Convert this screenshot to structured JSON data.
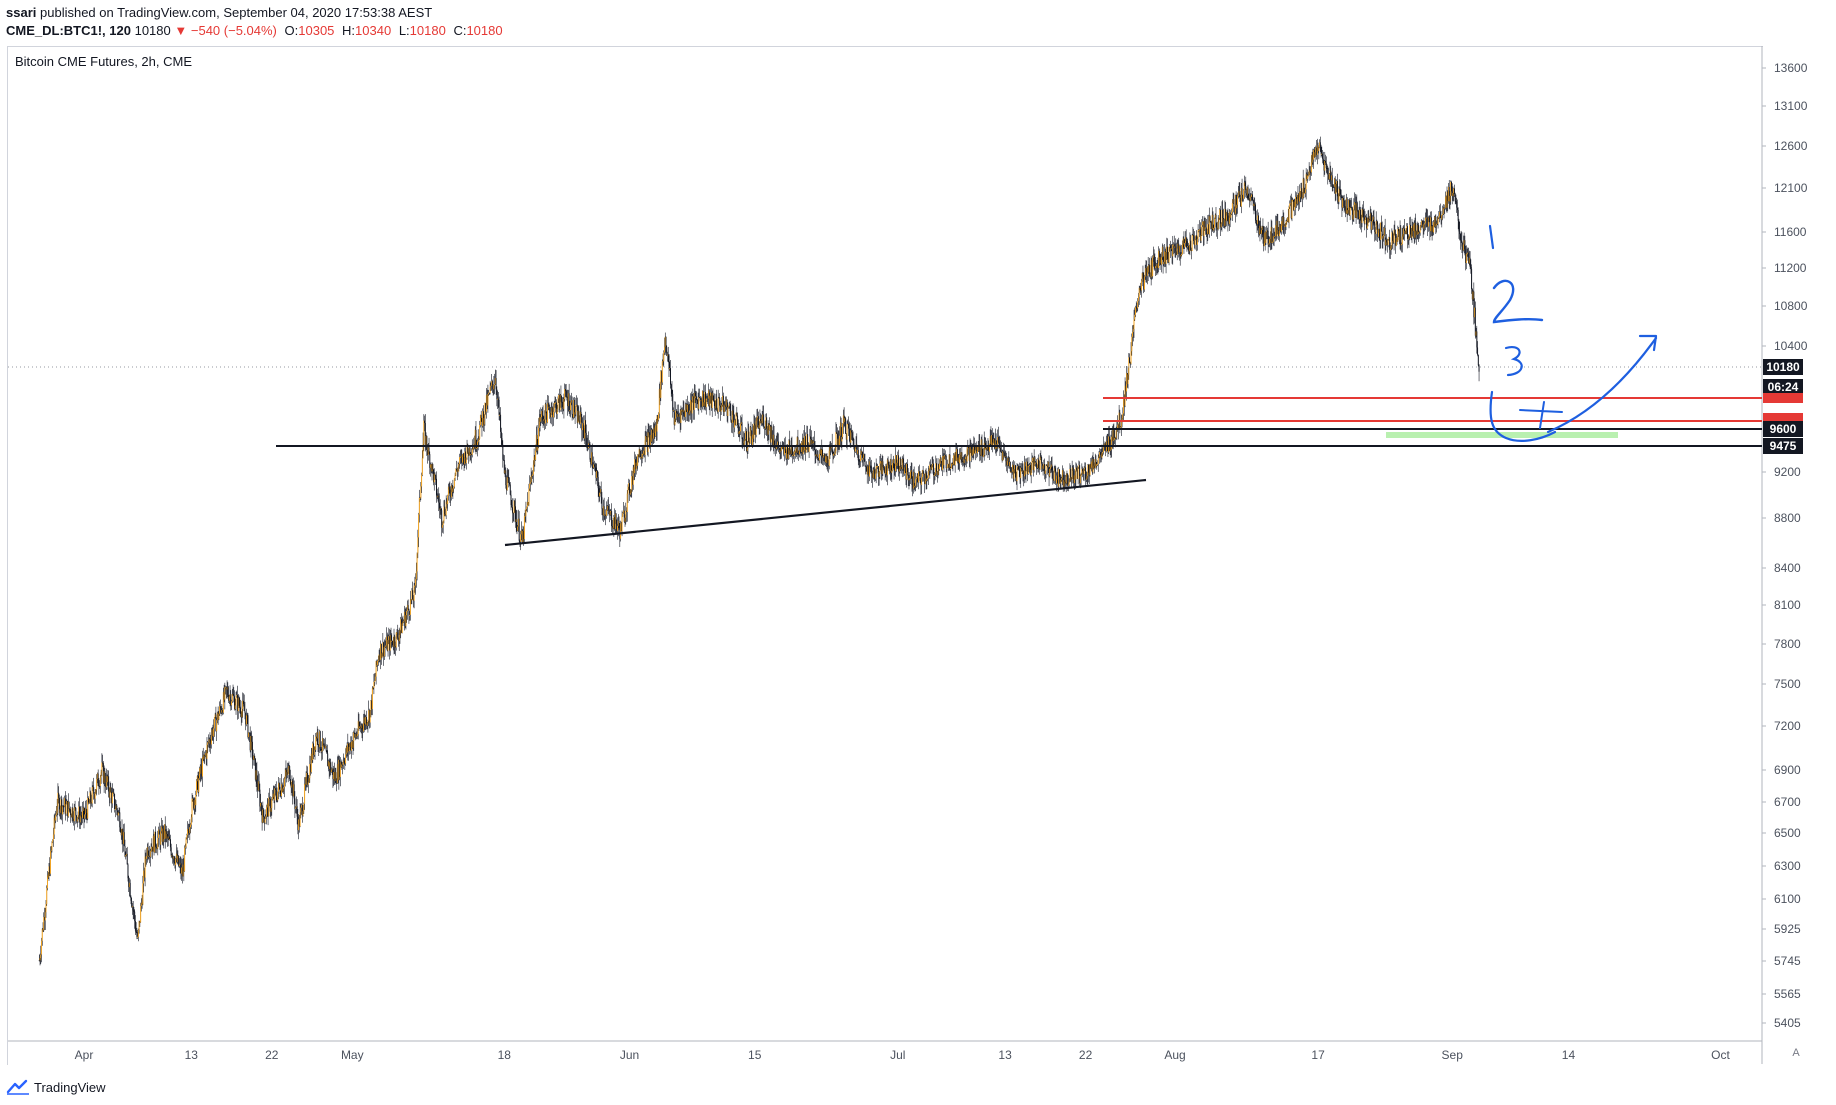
{
  "header": {
    "author": "ssari",
    "published_text": "published on TradingView.com, September 04, 2020 17:53:38 AEST",
    "symbol": "CME_DL:BTC1!, 120",
    "last": "10180",
    "change": "−540 (−5.04%)",
    "o_label": "O:",
    "o_value": "10305",
    "h_label": "H:",
    "h_value": "10340",
    "l_label": "L:",
    "l_value": "10180",
    "c_label": "C:",
    "c_value": "10180"
  },
  "chart_title": "Bitcoin CME Futures, 2h, CME",
  "footer": {
    "brand": "TradingView"
  },
  "auto_button": "A",
  "colors": {
    "up": "#f5a623",
    "down": "#131722",
    "red_line": "#e53935",
    "black_line": "#131722",
    "green_zone": "#b9f0b0",
    "annotation": "#1e5fe0",
    "axis_text": "#4c525e"
  },
  "chart_data": {
    "type": "candlestick",
    "title": "Bitcoin CME Futures, 2h, CME",
    "price_scale": "log",
    "y_ticks": [
      13600,
      13100,
      12600,
      12100,
      11600,
      11200,
      10800,
      10400,
      9200,
      8800,
      8400,
      8100,
      7800,
      7500,
      7200,
      6900,
      6700,
      6500,
      6300,
      6100,
      5925,
      5745,
      5565,
      5405
    ],
    "x_ticks": [
      "Apr",
      "13",
      "22",
      "May",
      "18",
      "Jun",
      "15",
      "Jul",
      "13",
      "22",
      "Aug",
      "17",
      "Sep",
      "14",
      "Oct"
    ],
    "price_labels": [
      {
        "value": "10180",
        "style": "black"
      },
      {
        "value": "06:24",
        "style": "black"
      },
      {
        "value": "9600",
        "style": "black"
      },
      {
        "value": "9475",
        "style": "black"
      }
    ],
    "price_path": [
      [
        "Mar 27",
        5750
      ],
      [
        "Mar 29",
        6700
      ],
      [
        "Apr 1",
        6600
      ],
      [
        "Apr 3",
        6900
      ],
      [
        "Apr 5",
        6600
      ],
      [
        "Apr 7",
        5850
      ],
      [
        "Apr 8",
        6400
      ],
      [
        "Apr 10",
        6500
      ],
      [
        "Apr 12",
        6250
      ],
      [
        "Apr 13",
        6650
      ],
      [
        "Apr 15",
        7100
      ],
      [
        "Apr 17",
        7450
      ],
      [
        "Apr 19",
        7300
      ],
      [
        "Apr 21",
        6600
      ],
      [
        "Apr 24",
        6900
      ],
      [
        "Apr 25",
        6550
      ],
      [
        "Apr 27",
        7150
      ],
      [
        "Apr 29",
        6850
      ],
      [
        "May 1",
        7100
      ],
      [
        "May 3",
        7300
      ],
      [
        "May 4",
        7750
      ],
      [
        "May 6",
        7850
      ],
      [
        "May 8",
        8200
      ],
      [
        "May 9",
        9600
      ],
      [
        "May 11",
        8800
      ],
      [
        "May 13",
        9300
      ],
      [
        "May 15",
        9550
      ],
      [
        "May 17",
        10100
      ],
      [
        "May 18",
        9200
      ],
      [
        "May 20",
        8600
      ],
      [
        "May 22",
        9700
      ],
      [
        "May 25",
        9900
      ],
      [
        "May 27",
        9600
      ],
      [
        "May 29",
        8900
      ],
      [
        "May 31",
        8700
      ],
      [
        "Jun 2",
        9400
      ],
      [
        "Jun 4",
        9600
      ],
      [
        "Jun 5",
        10500
      ],
      [
        "Jun 6",
        9700
      ],
      [
        "Jun 9",
        9900
      ],
      [
        "Jun 12",
        9800
      ],
      [
        "Jun 14",
        9500
      ],
      [
        "Jun 16",
        9700
      ],
      [
        "Jun 18",
        9400
      ],
      [
        "Jun 21",
        9500
      ],
      [
        "Jun 23",
        9300
      ],
      [
        "Jun 25",
        9650
      ],
      [
        "Jun 28",
        9200
      ],
      [
        "Jul 1",
        9300
      ],
      [
        "Jul 3",
        9100
      ],
      [
        "Jul 6",
        9300
      ],
      [
        "Jul 9",
        9400
      ],
      [
        "Jul 12",
        9500
      ],
      [
        "Jul 14",
        9200
      ],
      [
        "Jul 17",
        9300
      ],
      [
        "Jul 19",
        9150
      ],
      [
        "Jul 22",
        9200
      ],
      [
        "Jul 24",
        9400
      ],
      [
        "Jul 26",
        9700
      ],
      [
        "Jul 27",
        10300
      ],
      [
        "Jul 28",
        11000
      ],
      [
        "Jul 30",
        11300
      ],
      [
        "Aug 1",
        11400
      ],
      [
        "Aug 3",
        11500
      ],
      [
        "Aug 5",
        11700
      ],
      [
        "Aug 7",
        11800
      ],
      [
        "Aug 9",
        12100
      ],
      [
        "Aug 11",
        11500
      ],
      [
        "Aug 13",
        11700
      ],
      [
        "Aug 15",
        12000
      ],
      [
        "Aug 17",
        12600
      ],
      [
        "Aug 18",
        12300
      ],
      [
        "Aug 20",
        11900
      ],
      [
        "Aug 23",
        11700
      ],
      [
        "Aug 25",
        11500
      ],
      [
        "Aug 27",
        11600
      ],
      [
        "Aug 30",
        11700
      ],
      [
        "Sep 1",
        12100
      ],
      [
        "Sep 2",
        11500
      ],
      [
        "Sep 3",
        11200
      ],
      [
        "Sep 4",
        10180
      ]
    ],
    "lines": [
      {
        "kind": "red",
        "value": 9900
      },
      {
        "kind": "red",
        "value": 9650
      },
      {
        "kind": "black",
        "value": 9600
      },
      {
        "kind": "black",
        "value": 9475
      },
      {
        "kind": "trendline"
      },
      {
        "kind": "green_zone",
        "value": 9560
      },
      {
        "kind": "dotted",
        "value": 10180
      }
    ],
    "annotations": [
      "1",
      "2",
      "3",
      "4"
    ]
  }
}
